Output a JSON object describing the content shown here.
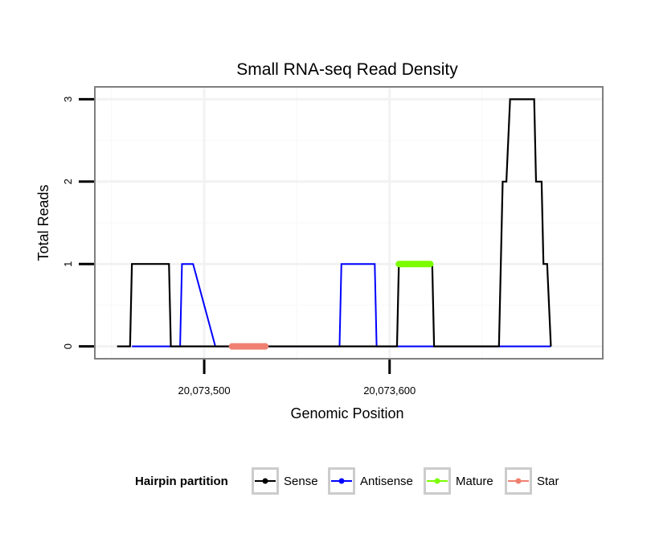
{
  "chart_data": {
    "type": "line",
    "title": "Small RNA-seq Read Density",
    "xlabel": "Genomic Position",
    "ylabel": "Total Reads",
    "xlim": [
      20073441,
      20073715
    ],
    "ylim": [
      -0.15,
      3.15
    ],
    "x_ticks": [
      {
        "value": 20073500,
        "label": "20,073,500"
      },
      {
        "value": 20073600,
        "label": "20,073,600"
      }
    ],
    "y_ticks": [
      {
        "value": 0,
        "label": "0"
      },
      {
        "value": 1,
        "label": "1"
      },
      {
        "value": 2,
        "label": "2"
      },
      {
        "value": 3,
        "label": "3"
      }
    ],
    "x_grid_minor": [
      20073450,
      20073550,
      20073650
    ],
    "x_grid_major": [
      20073500,
      20073600
    ],
    "y_grid_minor": [
      0.5,
      1.5,
      2.5
    ],
    "y_grid_major": [
      0,
      1,
      2,
      3
    ],
    "grid": true,
    "legend": {
      "title": "Hairpin partition",
      "position": "bottom",
      "entries": [
        {
          "name": "Sense",
          "color": "#000000"
        },
        {
          "name": "Antisense",
          "color": "#0000ff"
        },
        {
          "name": "Mature",
          "color": "#7cfc00"
        },
        {
          "name": "Star",
          "color": "#f08070"
        }
      ]
    },
    "series": [
      {
        "name": "Sense",
        "color": "#000000",
        "points": [
          [
            20073453,
            0
          ],
          [
            20073460,
            0
          ],
          [
            20073461,
            1
          ],
          [
            20073481,
            1
          ],
          [
            20073482,
            0
          ],
          [
            20073604,
            0
          ],
          [
            20073605,
            1
          ],
          [
            20073623,
            1
          ],
          [
            20073624,
            0
          ],
          [
            20073659,
            0
          ],
          [
            20073661,
            2
          ],
          [
            20073663,
            2
          ],
          [
            20073665,
            3
          ],
          [
            20073678,
            3
          ],
          [
            20073679,
            2
          ],
          [
            20073682,
            2
          ],
          [
            20073683,
            1
          ],
          [
            20073685,
            1
          ],
          [
            20073687,
            0
          ]
        ]
      },
      {
        "name": "Antisense",
        "color": "#0000ff",
        "points": [
          [
            20073461,
            0
          ],
          [
            20073487,
            0
          ],
          [
            20073488,
            1
          ],
          [
            20073493,
            1
          ],
          [
            20073494,
            1
          ],
          [
            20073506,
            0
          ],
          [
            20073573,
            0
          ],
          [
            20073574,
            1
          ],
          [
            20073592,
            1
          ],
          [
            20073593,
            0
          ],
          [
            20073605,
            0
          ],
          [
            20073623,
            0
          ],
          [
            20073659,
            0
          ],
          [
            20073687,
            0
          ]
        ]
      },
      {
        "name": "Mature",
        "color": "#7cfc00",
        "points": [
          [
            20073605,
            1
          ],
          [
            20073622,
            1
          ]
        ]
      },
      {
        "name": "Star",
        "color": "#f08070",
        "points": [
          [
            20073515,
            0
          ],
          [
            20073533,
            0
          ]
        ]
      }
    ]
  }
}
